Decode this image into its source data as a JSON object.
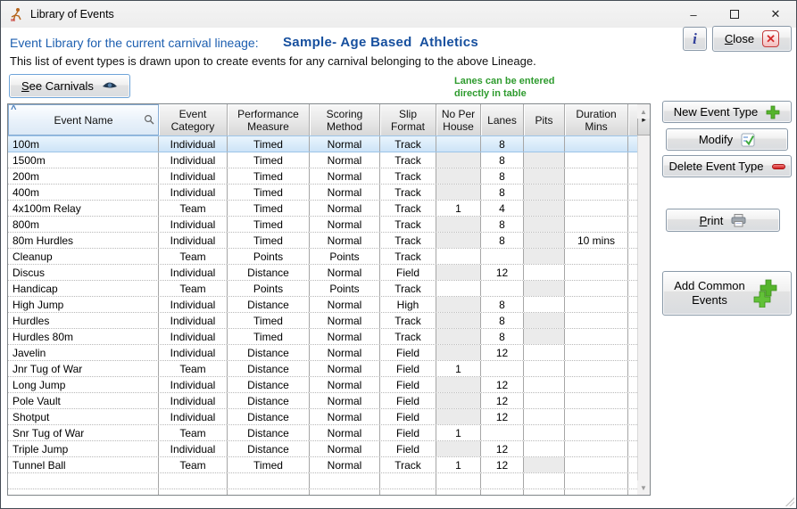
{
  "window": {
    "title": "Library of Events"
  },
  "icons": {
    "minimize": "–",
    "close_window": "✕",
    "sort_ascending": "^",
    "scroll_right": "▸",
    "scroll_up": "▲",
    "scroll_down": "▼",
    "close_x": "✕",
    "info": "i"
  },
  "header": {
    "label": "Event Library for the current carnival lineage:",
    "lineage_name": "Sample- Age Based  Athletics",
    "description": "This list of event types is drawn upon to create events for any carnival belonging to the above Lineage.",
    "see_carnivals_label": "See Carnivals",
    "lanes_note_line1": "Lanes can be entered",
    "lanes_note_line2": "directly in table",
    "close_label": "Close"
  },
  "actions": {
    "new_event_type": "New Event Type",
    "modify": "Modify",
    "delete_event_type": "Delete Event Type",
    "print": "Print",
    "add_common_events_line1": "Add Common",
    "add_common_events_line2": "Events"
  },
  "table": {
    "columns": [
      "Event Name",
      "Event Category",
      "Performance Measure",
      "Scoring Method",
      "Slip Format",
      "No Per House",
      "Lanes",
      "Pits",
      "Duration Mins"
    ],
    "rows": [
      {
        "name": "100m",
        "category": "Individual",
        "measure": "Timed",
        "scoring": "Normal",
        "slip": "Track",
        "no_per_house": "",
        "lanes": "8",
        "pits": "",
        "duration": "",
        "selected": true,
        "np_gray": true,
        "pits_gray": true
      },
      {
        "name": "1500m",
        "category": "Individual",
        "measure": "Timed",
        "scoring": "Normal",
        "slip": "Track",
        "no_per_house": "",
        "lanes": "8",
        "pits": "",
        "duration": "",
        "selected": false,
        "np_gray": true,
        "pits_gray": true
      },
      {
        "name": "200m",
        "category": "Individual",
        "measure": "Timed",
        "scoring": "Normal",
        "slip": "Track",
        "no_per_house": "",
        "lanes": "8",
        "pits": "",
        "duration": "",
        "selected": false,
        "np_gray": true,
        "pits_gray": true
      },
      {
        "name": "400m",
        "category": "Individual",
        "measure": "Timed",
        "scoring": "Normal",
        "slip": "Track",
        "no_per_house": "",
        "lanes": "8",
        "pits": "",
        "duration": "",
        "selected": false,
        "np_gray": true,
        "pits_gray": true
      },
      {
        "name": "4x100m Relay",
        "category": "Team",
        "measure": "Timed",
        "scoring": "Normal",
        "slip": "Track",
        "no_per_house": "1",
        "lanes": "4",
        "pits": "",
        "duration": "",
        "selected": false,
        "np_gray": false,
        "pits_gray": true
      },
      {
        "name": "800m",
        "category": "Individual",
        "measure": "Timed",
        "scoring": "Normal",
        "slip": "Track",
        "no_per_house": "",
        "lanes": "8",
        "pits": "",
        "duration": "",
        "selected": false,
        "np_gray": true,
        "pits_gray": true
      },
      {
        "name": "80m Hurdles",
        "category": "Individual",
        "measure": "Timed",
        "scoring": "Normal",
        "slip": "Track",
        "no_per_house": "",
        "lanes": "8",
        "pits": "",
        "duration": "10 mins",
        "selected": false,
        "np_gray": true,
        "pits_gray": true
      },
      {
        "name": "Cleanup",
        "category": "Team",
        "measure": "Points",
        "scoring": "Points",
        "slip": "Track",
        "no_per_house": "",
        "lanes": "",
        "pits": "",
        "duration": "",
        "selected": false,
        "np_gray": false,
        "pits_gray": true
      },
      {
        "name": "Discus",
        "category": "Individual",
        "measure": "Distance",
        "scoring": "Normal",
        "slip": "Field",
        "no_per_house": "",
        "lanes": "12",
        "pits": "",
        "duration": "",
        "selected": false,
        "np_gray": true,
        "pits_gray": false
      },
      {
        "name": "Handicap",
        "category": "Team",
        "measure": "Points",
        "scoring": "Points",
        "slip": "Track",
        "no_per_house": "",
        "lanes": "",
        "pits": "",
        "duration": "",
        "selected": false,
        "np_gray": false,
        "pits_gray": true
      },
      {
        "name": "High Jump",
        "category": "Individual",
        "measure": "Distance",
        "scoring": "Normal",
        "slip": "High",
        "no_per_house": "",
        "lanes": "8",
        "pits": "",
        "duration": "",
        "selected": false,
        "np_gray": true,
        "pits_gray": false
      },
      {
        "name": "Hurdles",
        "category": "Individual",
        "measure": "Timed",
        "scoring": "Normal",
        "slip": "Track",
        "no_per_house": "",
        "lanes": "8",
        "pits": "",
        "duration": "",
        "selected": false,
        "np_gray": true,
        "pits_gray": true
      },
      {
        "name": "Hurdles 80m",
        "category": "Individual",
        "measure": "Timed",
        "scoring": "Normal",
        "slip": "Track",
        "no_per_house": "",
        "lanes": "8",
        "pits": "",
        "duration": "",
        "selected": false,
        "np_gray": true,
        "pits_gray": true
      },
      {
        "name": "Javelin",
        "category": "Individual",
        "measure": "Distance",
        "scoring": "Normal",
        "slip": "Field",
        "no_per_house": "",
        "lanes": "12",
        "pits": "",
        "duration": "",
        "selected": false,
        "np_gray": true,
        "pits_gray": false
      },
      {
        "name": "Jnr Tug of War",
        "category": "Team",
        "measure": "Distance",
        "scoring": "Normal",
        "slip": "Field",
        "no_per_house": "1",
        "lanes": "",
        "pits": "",
        "duration": "",
        "selected": false,
        "np_gray": false,
        "pits_gray": false
      },
      {
        "name": "Long Jump",
        "category": "Individual",
        "measure": "Distance",
        "scoring": "Normal",
        "slip": "Field",
        "no_per_house": "",
        "lanes": "12",
        "pits": "",
        "duration": "",
        "selected": false,
        "np_gray": true,
        "pits_gray": false
      },
      {
        "name": "Pole Vault",
        "category": "Individual",
        "measure": "Distance",
        "scoring": "Normal",
        "slip": "Field",
        "no_per_house": "",
        "lanes": "12",
        "pits": "",
        "duration": "",
        "selected": false,
        "np_gray": true,
        "pits_gray": false
      },
      {
        "name": "Shotput",
        "category": "Individual",
        "measure": "Distance",
        "scoring": "Normal",
        "slip": "Field",
        "no_per_house": "",
        "lanes": "12",
        "pits": "",
        "duration": "",
        "selected": false,
        "np_gray": true,
        "pits_gray": false
      },
      {
        "name": "Snr Tug of War",
        "category": "Team",
        "measure": "Distance",
        "scoring": "Normal",
        "slip": "Field",
        "no_per_house": "1",
        "lanes": "",
        "pits": "",
        "duration": "",
        "selected": false,
        "np_gray": false,
        "pits_gray": false
      },
      {
        "name": "Triple Jump",
        "category": "Individual",
        "measure": "Distance",
        "scoring": "Normal",
        "slip": "Field",
        "no_per_house": "",
        "lanes": "12",
        "pits": "",
        "duration": "",
        "selected": false,
        "np_gray": true,
        "pits_gray": false
      },
      {
        "name": "Tunnel Ball",
        "category": "Team",
        "measure": "Timed",
        "scoring": "Normal",
        "slip": "Track",
        "no_per_house": "1",
        "lanes": "12",
        "pits": "",
        "duration": "",
        "selected": false,
        "np_gray": false,
        "pits_gray": true
      }
    ],
    "empty_filler_rows": 2
  },
  "colors": {
    "accent_blue_text": "#1d5fb0",
    "lineage_blue": "#164f9e",
    "note_green": "#2e9b2e",
    "selected_row": "#cde4f7",
    "disabled_cell": "#ebebeb",
    "plus_green": "#55b42c",
    "delete_red": "#d21f1f",
    "close_x_red": "#d42a2a"
  }
}
